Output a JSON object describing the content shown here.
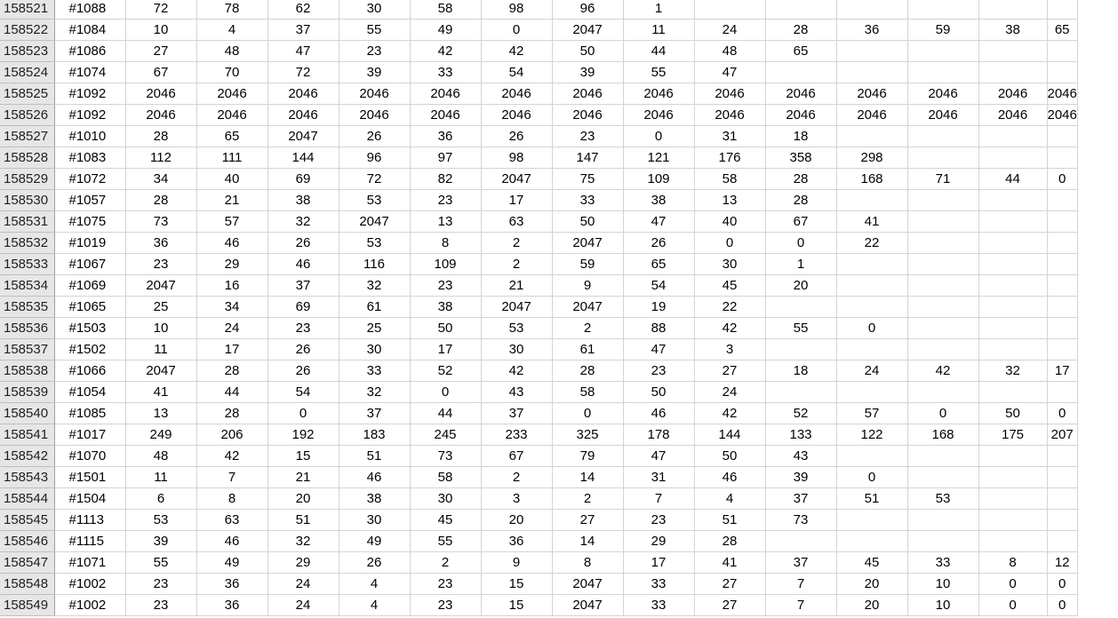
{
  "sheet": {
    "rows": [
      {
        "row_number": "158521",
        "cells": [
          "#1088",
          "72",
          "78",
          "62",
          "30",
          "58",
          "98",
          "96",
          "1",
          "",
          "",
          "",
          "",
          "",
          ""
        ]
      },
      {
        "row_number": "158522",
        "cells": [
          "#1084",
          "10",
          "4",
          "37",
          "55",
          "49",
          "0",
          "2047",
          "11",
          "24",
          "28",
          "36",
          "59",
          "38",
          "65"
        ]
      },
      {
        "row_number": "158523",
        "cells": [
          "#1086",
          "27",
          "48",
          "47",
          "23",
          "42",
          "42",
          "50",
          "44",
          "48",
          "65",
          "",
          "",
          "",
          ""
        ]
      },
      {
        "row_number": "158524",
        "cells": [
          "#1074",
          "67",
          "70",
          "72",
          "39",
          "33",
          "54",
          "39",
          "55",
          "47",
          "",
          "",
          "",
          "",
          ""
        ]
      },
      {
        "row_number": "158525",
        "cells": [
          "#1092",
          "2046",
          "2046",
          "2046",
          "2046",
          "2046",
          "2046",
          "2046",
          "2046",
          "2046",
          "2046",
          "2046",
          "2046",
          "2046",
          "2046"
        ]
      },
      {
        "row_number": "158526",
        "cells": [
          "#1092",
          "2046",
          "2046",
          "2046",
          "2046",
          "2046",
          "2046",
          "2046",
          "2046",
          "2046",
          "2046",
          "2046",
          "2046",
          "2046",
          "2046"
        ]
      },
      {
        "row_number": "158527",
        "cells": [
          "#1010",
          "28",
          "65",
          "2047",
          "26",
          "36",
          "26",
          "23",
          "0",
          "31",
          "18",
          "",
          "",
          "",
          ""
        ]
      },
      {
        "row_number": "158528",
        "cells": [
          "#1083",
          "112",
          "111",
          "144",
          "96",
          "97",
          "98",
          "147",
          "121",
          "176",
          "358",
          "298",
          "",
          "",
          ""
        ]
      },
      {
        "row_number": "158529",
        "cells": [
          "#1072",
          "34",
          "40",
          "69",
          "72",
          "82",
          "2047",
          "75",
          "109",
          "58",
          "28",
          "168",
          "71",
          "44",
          "0"
        ]
      },
      {
        "row_number": "158530",
        "cells": [
          "#1057",
          "28",
          "21",
          "38",
          "53",
          "23",
          "17",
          "33",
          "38",
          "13",
          "28",
          "",
          "",
          "",
          ""
        ]
      },
      {
        "row_number": "158531",
        "cells": [
          "#1075",
          "73",
          "57",
          "32",
          "2047",
          "13",
          "63",
          "50",
          "47",
          "40",
          "67",
          "41",
          "",
          "",
          ""
        ]
      },
      {
        "row_number": "158532",
        "cells": [
          "#1019",
          "36",
          "46",
          "26",
          "53",
          "8",
          "2",
          "2047",
          "26",
          "0",
          "0",
          "22",
          "",
          "",
          ""
        ]
      },
      {
        "row_number": "158533",
        "cells": [
          "#1067",
          "23",
          "29",
          "46",
          "116",
          "109",
          "2",
          "59",
          "65",
          "30",
          "1",
          "",
          "",
          "",
          ""
        ]
      },
      {
        "row_number": "158534",
        "cells": [
          "#1069",
          "2047",
          "16",
          "37",
          "32",
          "23",
          "21",
          "9",
          "54",
          "45",
          "20",
          "",
          "",
          "",
          ""
        ]
      },
      {
        "row_number": "158535",
        "cells": [
          "#1065",
          "25",
          "34",
          "69",
          "61",
          "38",
          "2047",
          "2047",
          "19",
          "22",
          "",
          "",
          "",
          "",
          ""
        ]
      },
      {
        "row_number": "158536",
        "cells": [
          "#1503",
          "10",
          "24",
          "23",
          "25",
          "50",
          "53",
          "2",
          "88",
          "42",
          "55",
          "0",
          "",
          "",
          ""
        ]
      },
      {
        "row_number": "158537",
        "cells": [
          "#1502",
          "11",
          "17",
          "26",
          "30",
          "17",
          "30",
          "61",
          "47",
          "3",
          "",
          "",
          "",
          "",
          ""
        ]
      },
      {
        "row_number": "158538",
        "cells": [
          "#1066",
          "2047",
          "28",
          "26",
          "33",
          "52",
          "42",
          "28",
          "23",
          "27",
          "18",
          "24",
          "42",
          "32",
          "17"
        ]
      },
      {
        "row_number": "158539",
        "cells": [
          "#1054",
          "41",
          "44",
          "54",
          "32",
          "0",
          "43",
          "58",
          "50",
          "24",
          "",
          "",
          "",
          "",
          ""
        ]
      },
      {
        "row_number": "158540",
        "cells": [
          "#1085",
          "13",
          "28",
          "0",
          "37",
          "44",
          "37",
          "0",
          "46",
          "42",
          "52",
          "57",
          "0",
          "50",
          "0"
        ]
      },
      {
        "row_number": "158541",
        "cells": [
          "#1017",
          "249",
          "206",
          "192",
          "183",
          "245",
          "233",
          "325",
          "178",
          "144",
          "133",
          "122",
          "168",
          "175",
          "207"
        ]
      },
      {
        "row_number": "158542",
        "cells": [
          "#1070",
          "48",
          "42",
          "15",
          "51",
          "73",
          "67",
          "79",
          "47",
          "50",
          "43",
          "",
          "",
          "",
          ""
        ]
      },
      {
        "row_number": "158543",
        "cells": [
          "#1501",
          "11",
          "7",
          "21",
          "46",
          "58",
          "2",
          "14",
          "31",
          "46",
          "39",
          "0",
          "",
          "",
          ""
        ]
      },
      {
        "row_number": "158544",
        "cells": [
          "#1504",
          "6",
          "8",
          "20",
          "38",
          "30",
          "3",
          "2",
          "7",
          "4",
          "37",
          "51",
          "53",
          "",
          ""
        ]
      },
      {
        "row_number": "158545",
        "cells": [
          "#1113",
          "53",
          "63",
          "51",
          "30",
          "45",
          "20",
          "27",
          "23",
          "51",
          "73",
          "",
          "",
          "",
          ""
        ]
      },
      {
        "row_number": "158546",
        "cells": [
          "#1115",
          "39",
          "46",
          "32",
          "49",
          "55",
          "36",
          "14",
          "29",
          "28",
          "",
          "",
          "",
          "",
          ""
        ]
      },
      {
        "row_number": "158547",
        "cells": [
          "#1071",
          "55",
          "49",
          "29",
          "26",
          "2",
          "9",
          "8",
          "17",
          "41",
          "37",
          "45",
          "33",
          "8",
          "12"
        ]
      },
      {
        "row_number": "158548",
        "cells": [
          "#1002",
          "23",
          "36",
          "24",
          "4",
          "23",
          "15",
          "2047",
          "33",
          "27",
          "7",
          "20",
          "10",
          "0",
          "0"
        ]
      },
      {
        "row_number": "158549",
        "cells": [
          "#1002",
          "23",
          "36",
          "24",
          "4",
          "23",
          "15",
          "2047",
          "33",
          "27",
          "7",
          "20",
          "10",
          "0",
          "0"
        ]
      }
    ]
  }
}
